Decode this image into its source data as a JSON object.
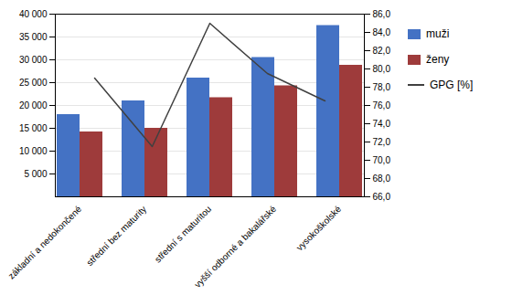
{
  "chart_data": {
    "type": "bar",
    "categories": [
      "základní a nedokončené",
      "střední bez maturity",
      "střední s maturitou",
      "vyšší odborné a bakalářské",
      "vysokoškolské"
    ],
    "series": [
      {
        "name": "muži",
        "color": "#4472C4",
        "values": [
          18000,
          21000,
          26000,
          30500,
          37500
        ]
      },
      {
        "name": "ženy",
        "color": "#9E3B3B",
        "values": [
          14200,
          15000,
          21700,
          24300,
          28800
        ]
      },
      {
        "name": "GPG [%]",
        "color": "#404040",
        "type": "line",
        "axis": "y2",
        "values": [
          79.0,
          71.5,
          85.0,
          79.5,
          76.5
        ]
      }
    ],
    "ylim": [
      0,
      40000
    ],
    "yticks": [
      {
        "value": 5000,
        "label": "5 000"
      },
      {
        "value": 10000,
        "label": "10 000"
      },
      {
        "value": 15000,
        "label": "15 000"
      },
      {
        "value": 20000,
        "label": "20 000"
      },
      {
        "value": 25000,
        "label": "25 000"
      },
      {
        "value": 30000,
        "label": "30 000"
      },
      {
        "value": 35000,
        "label": "35 000"
      },
      {
        "value": 40000,
        "label": "40 000"
      }
    ],
    "y2lim": [
      66.0,
      86.0
    ],
    "y2ticks": [
      {
        "value": 66,
        "label": "66,0"
      },
      {
        "value": 68,
        "label": "68,0"
      },
      {
        "value": 70,
        "label": "70,0"
      },
      {
        "value": 72,
        "label": "72,0"
      },
      {
        "value": 74,
        "label": "74,0"
      },
      {
        "value": 76,
        "label": "76,0"
      },
      {
        "value": 78,
        "label": "78,0"
      },
      {
        "value": 80,
        "label": "80,0"
      },
      {
        "value": 82,
        "label": "82,0"
      },
      {
        "value": 84,
        "label": "84,0"
      },
      {
        "value": 86,
        "label": "86,0"
      }
    ],
    "grid": true,
    "legend": "right"
  }
}
